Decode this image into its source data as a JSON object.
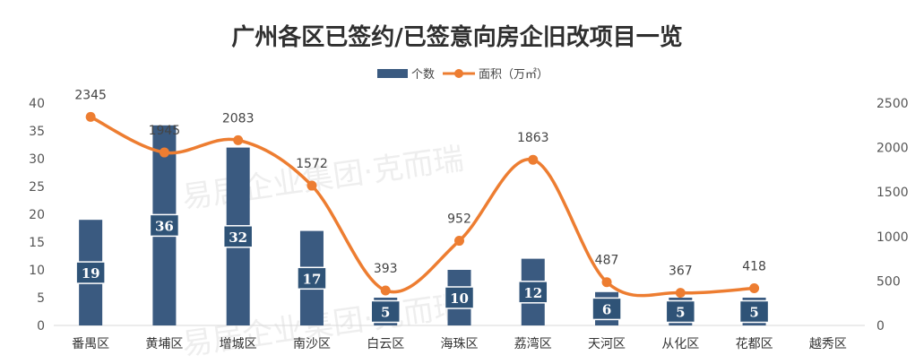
{
  "chart_data": {
    "type": "bar",
    "title": "广州各区已签约/已签意向房企旧改项目一览",
    "categories": [
      "番禺区",
      "黄埔区",
      "增城区",
      "南沙区",
      "白云区",
      "海珠区",
      "荔湾区",
      "天河区",
      "从化区",
      "花都区",
      "越秀区"
    ],
    "series": [
      {
        "name": "个数",
        "kind": "bar",
        "axis": "left",
        "color": "#3a5a80",
        "values": [
          19,
          36,
          32,
          17,
          5,
          10,
          12,
          6,
          5,
          5,
          null
        ]
      },
      {
        "name": "面积（万㎡）",
        "kind": "line",
        "axis": "right",
        "color": "#ed7d31",
        "values": [
          2345,
          1945,
          2083,
          1572,
          393,
          952,
          1863,
          487,
          367,
          418,
          null
        ]
      }
    ],
    "y_left": {
      "min": 0,
      "max": 40,
      "step": 5,
      "ticks": [
        "0",
        "5",
        "10",
        "15",
        "20",
        "25",
        "30",
        "35",
        "40"
      ]
    },
    "y_right": {
      "min": 0,
      "max": 2500,
      "step": 500,
      "ticks": [
        "0",
        "500",
        "1000",
        "1500",
        "2000",
        "2500"
      ]
    },
    "legend_position": "top-center",
    "grid": false
  },
  "watermark": {
    "text": "易居企业集团·克而瑞"
  }
}
